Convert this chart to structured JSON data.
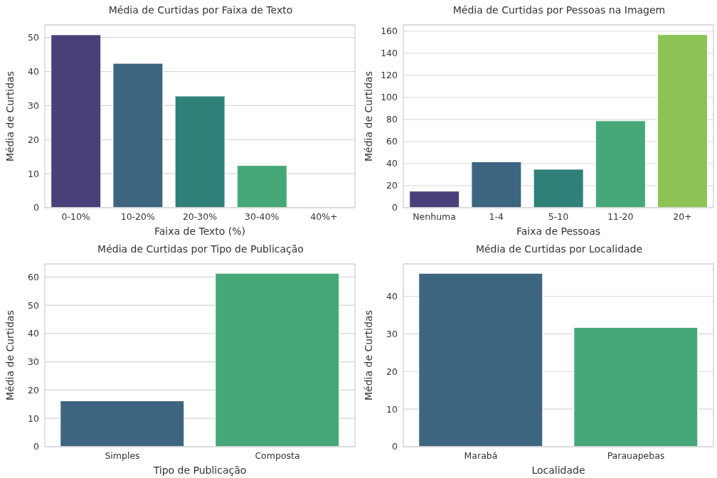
{
  "chart_data": [
    {
      "type": "bar",
      "title": "Média de Curtidas por Faixa de Texto",
      "xlabel": "Faixa de Texto (%)",
      "ylabel": "Média de Curtidas",
      "categories": [
        "0-10%",
        "10-20%",
        "20-30%",
        "30-40%",
        "40%+"
      ],
      "values": [
        50.8,
        42.4,
        32.8,
        12.4,
        null
      ],
      "colors": [
        "#4a3f78",
        "#3e6580",
        "#2e8079",
        "#46a878",
        "#8bc355"
      ],
      "ylim": [
        0,
        53.7
      ],
      "yticks": [
        0,
        10,
        20,
        30,
        40,
        50
      ],
      "grid": "y"
    },
    {
      "type": "bar",
      "title": "Média de Curtidas por Pessoas na Imagem",
      "xlabel": "Faixa de Pessoas",
      "ylabel": "Média de Curtidas",
      "categories": [
        "Nenhuma",
        "1-4",
        "5-10",
        "11-20",
        "20+"
      ],
      "values": [
        15,
        41.6,
        34.9,
        78.8,
        157
      ],
      "colors": [
        "#4a3f78",
        "#3e6580",
        "#2e8079",
        "#46a878",
        "#8bc355"
      ],
      "ylim": [
        0,
        165.8
      ],
      "yticks": [
        0,
        20,
        40,
        60,
        80,
        100,
        120,
        140,
        160
      ],
      "grid": "y"
    },
    {
      "type": "bar",
      "title": "Média de Curtidas por Tipo de Publicação",
      "xlabel": "Tipo de Publicação",
      "ylabel": "Média de Curtidas",
      "categories": [
        "Simples",
        "Composta"
      ],
      "values": [
        16.2,
        61.3
      ],
      "colors": [
        "#3e6580",
        "#46a878"
      ],
      "ylim": [
        0,
        64.6
      ],
      "yticks": [
        0,
        10,
        20,
        30,
        40,
        50,
        60
      ],
      "grid": "y"
    },
    {
      "type": "bar",
      "title": "Média de Curtidas por Localidade",
      "xlabel": "Localidade",
      "ylabel": "Média de Curtidas",
      "categories": [
        "Marabá",
        "Parauapebas"
      ],
      "values": [
        46.1,
        31.7
      ],
      "colors": [
        "#3e6580",
        "#46a878"
      ],
      "ylim": [
        0,
        48.6
      ],
      "yticks": [
        0,
        10,
        20,
        30,
        40
      ],
      "grid": "y"
    }
  ]
}
